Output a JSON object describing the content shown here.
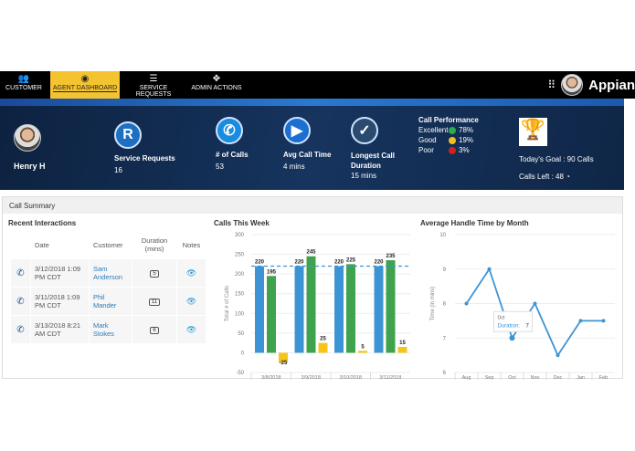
{
  "nav": {
    "items": [
      {
        "label": "CUSTOMER",
        "icon": "users-icon"
      },
      {
        "label": "AGENT DASHBOARD",
        "icon": "user-circle-icon",
        "active": true
      },
      {
        "label": "SERVICE REQUESTS",
        "icon": "list-icon"
      },
      {
        "label": "ADMIN ACTIONS",
        "icon": "move-icon"
      }
    ],
    "brand": "Appian"
  },
  "agent": {
    "name": "Henry H"
  },
  "stats": [
    {
      "label": "Service Requests",
      "value": "16",
      "icon": "registered-icon"
    },
    {
      "label": "# of Calls",
      "value": "53",
      "icon": "phone-icon"
    },
    {
      "label": "Avg Call Time",
      "value": "4 mins",
      "icon": "play-icon"
    },
    {
      "label": "Longest Call Duration",
      "value": "15 mins",
      "icon": "check-circle-icon"
    }
  ],
  "performance": {
    "title": "Call Performance",
    "rows": [
      {
        "label": "Excellent",
        "value": "78%",
        "color": "#2eaa4a"
      },
      {
        "label": "Good",
        "value": "19%",
        "color": "#f0c020"
      },
      {
        "label": "Poor",
        "value": "3%",
        "color": "#d02020"
      }
    ]
  },
  "goal": {
    "goal": "Today's Goal : 90 Calls",
    "left": "Calls Left : 48"
  },
  "summary": {
    "title": "Call Summary",
    "recent_title": "Recent Interactions",
    "columns": [
      "",
      "Date",
      "Customer",
      "Duration (mins)",
      "Notes"
    ],
    "rows": [
      {
        "date": "3/12/2018 1:09 PM CDT",
        "customer": "Sam Anderson",
        "duration": "5"
      },
      {
        "date": "3/11/2018 1:09 PM CDT",
        "customer": "Phil Mander",
        "duration": "11"
      },
      {
        "date": "3/13/2018 8:21 AM CDT",
        "customer": "Mark Stokes",
        "duration": "6"
      }
    ]
  },
  "chart_data": [
    {
      "type": "bar",
      "title": "Calls This Week",
      "ylabel": "Total # of Calls",
      "ylim": [
        -50,
        300
      ],
      "yticks": [
        300,
        250,
        200,
        150,
        100,
        50,
        0,
        -50
      ],
      "categories": [
        "3/8/2018",
        "3/9/2018",
        "3/10/2018",
        "3/11/2018"
      ],
      "series": [
        {
          "values": [
            220,
            220,
            220,
            220
          ],
          "color": "#3d94d4"
        },
        {
          "values": [
            195,
            245,
            225,
            235
          ],
          "color": "#3fa34d"
        },
        {
          "values": [
            -25,
            25,
            5,
            15
          ],
          "color": "#f5c518"
        }
      ],
      "target_line": 220,
      "grid": true
    },
    {
      "type": "line",
      "title": "Average Handle Time by Month",
      "ylabel": "Time (in mins)",
      "ylim": [
        6,
        10
      ],
      "yticks": [
        10,
        9,
        8,
        7,
        6
      ],
      "categories": [
        "Aug",
        "Sep",
        "Oct",
        "Nov",
        "Dec",
        "Jan",
        "Feb"
      ],
      "values": [
        8,
        9,
        7,
        8,
        6.5,
        7.5,
        7.5
      ],
      "color": "#3d94d4",
      "grid": true,
      "tooltip": {
        "title": "Oct",
        "label": "Duration:",
        "value": "7"
      }
    }
  ]
}
